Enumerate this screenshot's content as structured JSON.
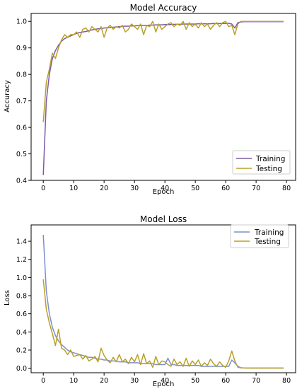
{
  "chart_data": [
    {
      "type": "line",
      "title": "Model Accuracy",
      "xlabel": "Epoch",
      "ylabel": "Accuracy",
      "xlim": [
        -4,
        83
      ],
      "ylim": [
        0.4,
        1.03
      ],
      "xticks": [
        0,
        10,
        20,
        30,
        40,
        50,
        60,
        70,
        80
      ],
      "yticks": [
        0.4,
        0.5,
        0.6,
        0.7,
        0.8,
        0.9,
        1.0
      ],
      "yticks_labels": [
        "0.4",
        "0.5",
        "0.6",
        "0.7",
        "0.8",
        "0.9",
        "1.0"
      ],
      "legend_position": "bottom-right",
      "series": [
        {
          "name": "Training",
          "color": "#7b5aa6",
          "x": [
            0,
            1,
            2,
            3,
            4,
            5,
            6,
            7,
            8,
            9,
            10,
            11,
            12,
            13,
            14,
            15,
            16,
            17,
            18,
            19,
            20,
            21,
            22,
            23,
            24,
            25,
            26,
            27,
            28,
            29,
            30,
            31,
            32,
            33,
            34,
            35,
            36,
            37,
            38,
            39,
            40,
            41,
            42,
            43,
            44,
            45,
            46,
            47,
            48,
            49,
            50,
            51,
            52,
            53,
            54,
            55,
            56,
            57,
            58,
            59,
            60,
            61,
            62,
            63,
            64,
            65,
            66,
            67,
            68,
            69,
            70,
            71,
            72,
            73,
            74,
            75,
            76,
            77,
            78,
            79
          ],
          "values": [
            0.42,
            0.7,
            0.8,
            0.86,
            0.89,
            0.91,
            0.925,
            0.935,
            0.94,
            0.945,
            0.95,
            0.955,
            0.958,
            0.96,
            0.962,
            0.965,
            0.968,
            0.97,
            0.972,
            0.973,
            0.975,
            0.976,
            0.977,
            0.978,
            0.979,
            0.98,
            0.981,
            0.982,
            0.982,
            0.983,
            0.983,
            0.984,
            0.984,
            0.985,
            0.985,
            0.986,
            0.986,
            0.987,
            0.987,
            0.987,
            0.988,
            0.988,
            0.988,
            0.989,
            0.989,
            0.989,
            0.99,
            0.99,
            0.99,
            0.99,
            0.99,
            0.991,
            0.991,
            0.991,
            0.991,
            0.991,
            0.992,
            0.992,
            0.992,
            0.992,
            0.992,
            0.993,
            0.99,
            0.975,
            0.995,
            0.998,
            0.999,
            0.999,
            0.999,
            0.999,
            0.999,
            0.999,
            0.999,
            0.999,
            0.999,
            0.999,
            0.999,
            0.999,
            0.999,
            0.999
          ]
        },
        {
          "name": "Testing",
          "color": "#b8a028",
          "x": [
            0,
            1,
            2,
            3,
            4,
            5,
            6,
            7,
            8,
            9,
            10,
            11,
            12,
            13,
            14,
            15,
            16,
            17,
            18,
            19,
            20,
            21,
            22,
            23,
            24,
            25,
            26,
            27,
            28,
            29,
            30,
            31,
            32,
            33,
            34,
            35,
            36,
            37,
            38,
            39,
            40,
            41,
            42,
            43,
            44,
            45,
            46,
            47,
            48,
            49,
            50,
            51,
            52,
            53,
            54,
            55,
            56,
            57,
            58,
            59,
            60,
            61,
            62,
            63,
            64,
            65,
            66,
            67,
            68,
            69,
            70,
            71,
            72,
            73,
            74,
            75,
            76,
            77,
            78,
            79
          ],
          "values": [
            0.62,
            0.77,
            0.82,
            0.88,
            0.86,
            0.9,
            0.93,
            0.95,
            0.94,
            0.95,
            0.95,
            0.96,
            0.94,
            0.97,
            0.975,
            0.96,
            0.98,
            0.97,
            0.96,
            0.98,
            0.94,
            0.975,
            0.985,
            0.97,
            0.98,
            0.975,
            0.985,
            0.96,
            0.97,
            0.99,
            0.98,
            0.97,
            0.99,
            0.95,
            0.985,
            0.98,
            1.0,
            0.96,
            0.99,
            0.97,
            0.98,
            0.99,
            0.995,
            0.98,
            0.99,
            0.985,
            1.0,
            0.97,
            0.995,
            0.98,
            0.99,
            0.975,
            0.995,
            0.98,
            0.99,
            0.97,
            0.985,
            0.995,
            0.98,
            0.995,
            1.0,
            0.98,
            0.985,
            0.95,
            0.99,
            1.0,
            1.0,
            1.0,
            1.0,
            1.0,
            1.0,
            1.0,
            1.0,
            1.0,
            1.0,
            1.0,
            1.0,
            1.0,
            1.0,
            1.0
          ]
        }
      ]
    },
    {
      "type": "line",
      "title": "Model Loss",
      "xlabel": "Epoch",
      "ylabel": "Loss",
      "xlim": [
        -4,
        83
      ],
      "ylim": [
        -0.05,
        1.58
      ],
      "xticks": [
        0,
        10,
        20,
        30,
        40,
        50,
        60,
        70,
        80
      ],
      "yticks": [
        0.0,
        0.2,
        0.4,
        0.6,
        0.8,
        1.0,
        1.2,
        1.4
      ],
      "yticks_labels": [
        "0.0",
        "0.2",
        "0.4",
        "0.6",
        "0.8",
        "1.0",
        "1.2",
        "1.4"
      ],
      "legend_position": "top-right",
      "series": [
        {
          "name": "Training",
          "color": "#7b8fcf",
          "x": [
            0,
            1,
            2,
            3,
            4,
            5,
            6,
            7,
            8,
            9,
            10,
            11,
            12,
            13,
            14,
            15,
            16,
            17,
            18,
            19,
            20,
            21,
            22,
            23,
            24,
            25,
            26,
            27,
            28,
            29,
            30,
            31,
            32,
            33,
            34,
            35,
            36,
            37,
            38,
            39,
            40,
            41,
            42,
            43,
            44,
            45,
            46,
            47,
            48,
            49,
            50,
            51,
            52,
            53,
            54,
            55,
            56,
            57,
            58,
            59,
            60,
            61,
            62,
            63,
            64,
            65,
            66,
            67,
            68,
            69,
            70,
            71,
            72,
            73,
            74,
            75,
            76,
            77,
            78,
            79
          ],
          "values": [
            1.47,
            0.85,
            0.6,
            0.45,
            0.36,
            0.3,
            0.26,
            0.23,
            0.2,
            0.18,
            0.17,
            0.16,
            0.15,
            0.14,
            0.13,
            0.12,
            0.12,
            0.11,
            0.1,
            0.1,
            0.09,
            0.09,
            0.08,
            0.08,
            0.08,
            0.07,
            0.07,
            0.07,
            0.06,
            0.06,
            0.06,
            0.06,
            0.05,
            0.05,
            0.05,
            0.05,
            0.05,
            0.04,
            0.04,
            0.04,
            0.04,
            0.11,
            0.04,
            0.04,
            0.03,
            0.03,
            0.03,
            0.03,
            0.03,
            0.03,
            0.03,
            0.03,
            0.02,
            0.02,
            0.02,
            0.02,
            0.02,
            0.02,
            0.02,
            0.02,
            0.02,
            0.02,
            0.09,
            0.06,
            0.02,
            0.005,
            0.003,
            0.002,
            0.002,
            0.002,
            0.002,
            0.002,
            0.002,
            0.002,
            0.002,
            0.002,
            0.002,
            0.002,
            0.002,
            0.002
          ]
        },
        {
          "name": "Testing",
          "color": "#b8a028",
          "x": [
            0,
            1,
            2,
            3,
            4,
            5,
            6,
            7,
            8,
            9,
            10,
            11,
            12,
            13,
            14,
            15,
            16,
            17,
            18,
            19,
            20,
            21,
            22,
            23,
            24,
            25,
            26,
            27,
            28,
            29,
            30,
            31,
            32,
            33,
            34,
            35,
            36,
            37,
            38,
            39,
            40,
            41,
            42,
            43,
            44,
            45,
            46,
            47,
            48,
            49,
            50,
            51,
            52,
            53,
            54,
            55,
            56,
            57,
            58,
            59,
            60,
            61,
            62,
            63,
            64,
            65,
            66,
            67,
            68,
            69,
            70,
            71,
            72,
            73,
            74,
            75,
            76,
            77,
            78,
            79
          ],
          "values": [
            0.98,
            0.65,
            0.5,
            0.38,
            0.25,
            0.43,
            0.22,
            0.2,
            0.15,
            0.2,
            0.13,
            0.14,
            0.15,
            0.1,
            0.14,
            0.08,
            0.1,
            0.13,
            0.07,
            0.22,
            0.14,
            0.09,
            0.06,
            0.12,
            0.07,
            0.15,
            0.07,
            0.1,
            0.05,
            0.12,
            0.07,
            0.15,
            0.04,
            0.16,
            0.05,
            0.08,
            0.01,
            0.13,
            0.04,
            0.08,
            0.07,
            0.04,
            0.02,
            0.1,
            0.04,
            0.07,
            0.02,
            0.11,
            0.02,
            0.08,
            0.04,
            0.09,
            0.02,
            0.06,
            0.03,
            0.1,
            0.05,
            0.02,
            0.07,
            0.03,
            0.01,
            0.08,
            0.19,
            0.08,
            0.01,
            0.005,
            0.003,
            0.002,
            0.002,
            0.002,
            0.002,
            0.002,
            0.002,
            0.002,
            0.002,
            0.002,
            0.002,
            0.002,
            0.002,
            0.002
          ]
        }
      ]
    }
  ]
}
